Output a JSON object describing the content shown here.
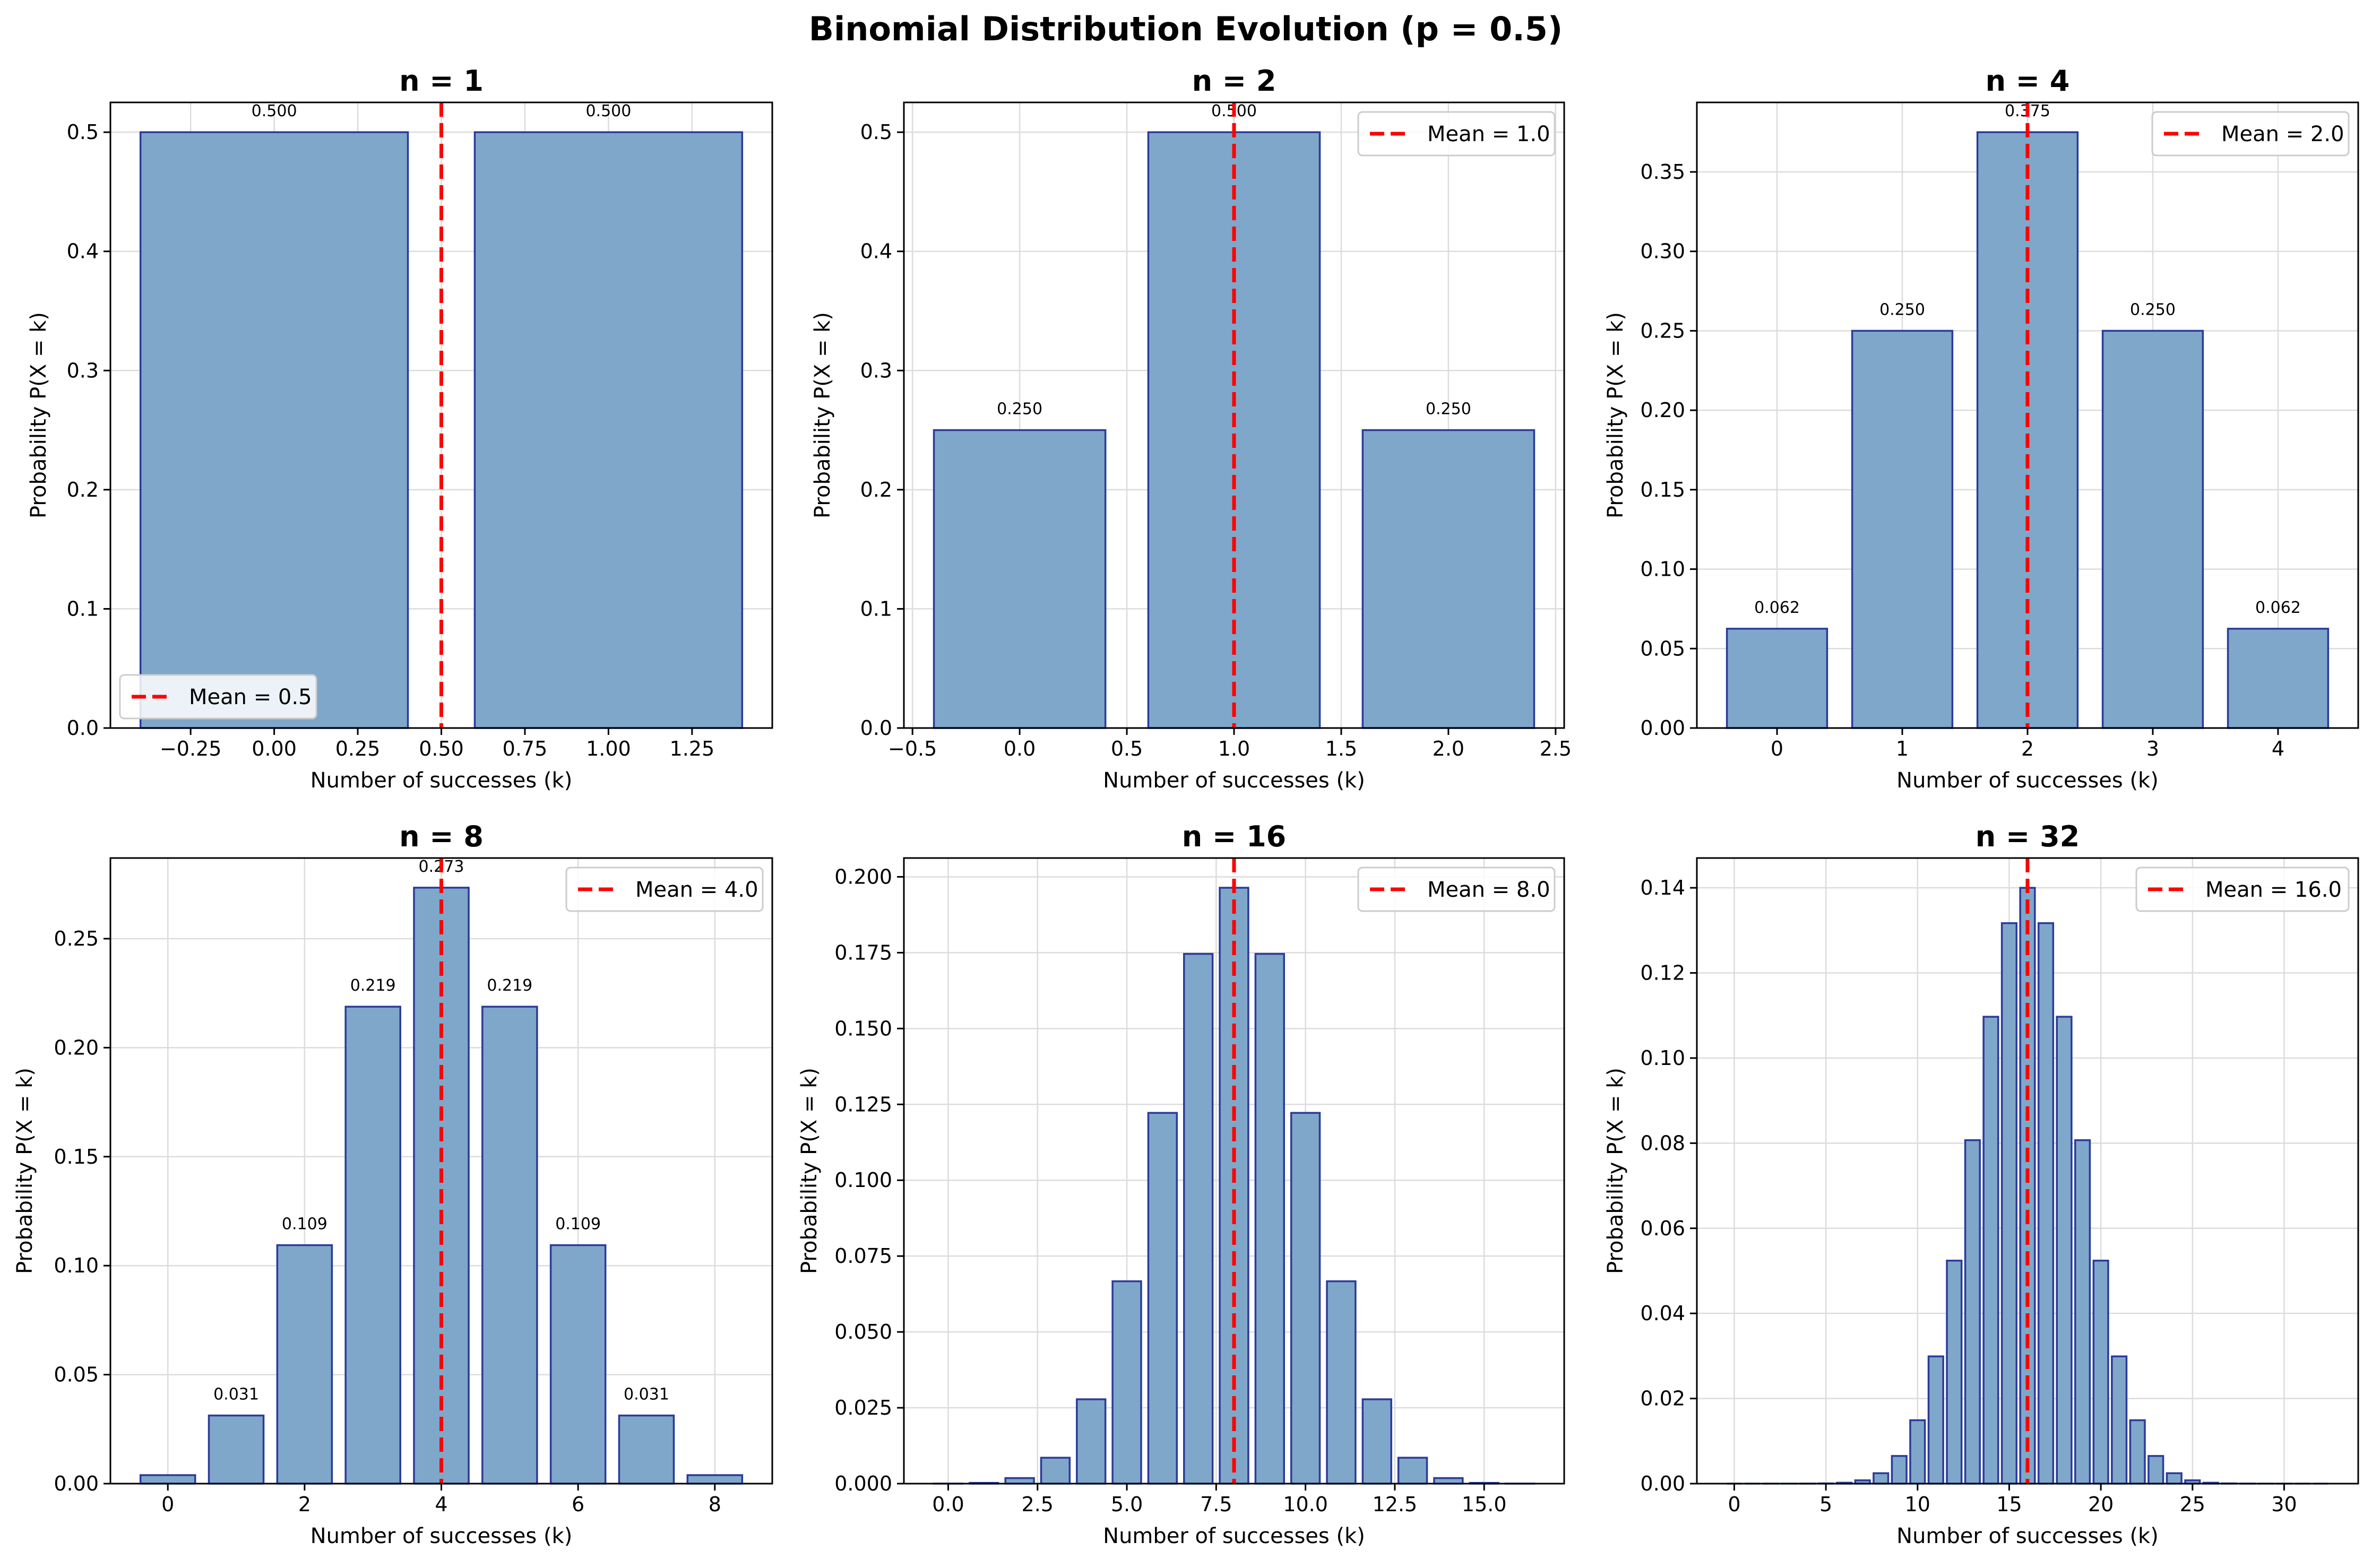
{
  "figure": {
    "title": "Binomial Distribution Evolution (p = 0.5)"
  },
  "colors": {
    "bar_fill": "#7fa7ca",
    "bar_edge": "#2b3b9a",
    "mean_line": "#ff0000",
    "grid": "#dcdcdc"
  },
  "chart_data": [
    {
      "type": "bar",
      "title": "n = 1",
      "xlabel": "Number of successes (k)",
      "ylabel": "Probability P(X = k)",
      "x": [
        0,
        1
      ],
      "values": [
        0.5,
        0.5
      ],
      "bar_labels": [
        "0.500",
        "0.500"
      ],
      "xlim": [
        -0.49,
        1.49
      ],
      "ylim": [
        0,
        0.525
      ],
      "xticks": [
        -0.25,
        0,
        0.25,
        0.5,
        0.75,
        1.0,
        1.25
      ],
      "xtick_labels": [
        "−0.25",
        "0.00",
        "0.25",
        "0.50",
        "0.75",
        "1.00",
        "1.25"
      ],
      "yticks": [
        0,
        0.1,
        0.2,
        0.3,
        0.4,
        0.5
      ],
      "ytick_labels": [
        "0.0",
        "0.1",
        "0.2",
        "0.3",
        "0.4",
        "0.5"
      ],
      "mean": 0.5,
      "legend": "Mean = 0.5",
      "legend_loc": "lower-left",
      "grid": true
    },
    {
      "type": "bar",
      "title": "n = 2",
      "xlabel": "Number of successes (k)",
      "ylabel": "Probability P(X = k)",
      "x": [
        0,
        1,
        2
      ],
      "values": [
        0.25,
        0.5,
        0.25
      ],
      "bar_labels": [
        "0.250",
        "0.500",
        "0.250"
      ],
      "xlim": [
        -0.54,
        2.54
      ],
      "ylim": [
        0,
        0.525
      ],
      "xticks": [
        -0.5,
        0,
        0.5,
        1.0,
        1.5,
        2.0,
        2.5
      ],
      "xtick_labels": [
        "−0.5",
        "0.0",
        "0.5",
        "1.0",
        "1.5",
        "2.0",
        "2.5"
      ],
      "yticks": [
        0,
        0.1,
        0.2,
        0.3,
        0.4,
        0.5
      ],
      "ytick_labels": [
        "0.0",
        "0.1",
        "0.2",
        "0.3",
        "0.4",
        "0.5"
      ],
      "mean": 1.0,
      "legend": "Mean = 1.0",
      "legend_loc": "upper-right",
      "grid": true
    },
    {
      "type": "bar",
      "title": "n = 4",
      "xlabel": "Number of successes (k)",
      "ylabel": "Probability P(X = k)",
      "x": [
        0,
        1,
        2,
        3,
        4
      ],
      "values": [
        0.0625,
        0.25,
        0.375,
        0.25,
        0.0625
      ],
      "bar_labels": [
        "0.062",
        "0.250",
        "0.375",
        "0.250",
        "0.062"
      ],
      "xlim": [
        -0.64,
        4.64
      ],
      "ylim": [
        0,
        0.39375
      ],
      "xticks": [
        0,
        1,
        2,
        3,
        4
      ],
      "xtick_labels": [
        "0",
        "1",
        "2",
        "3",
        "4"
      ],
      "yticks": [
        0,
        0.05,
        0.1,
        0.15,
        0.2,
        0.25,
        0.3,
        0.35
      ],
      "ytick_labels": [
        "0.00",
        "0.05",
        "0.10",
        "0.15",
        "0.20",
        "0.25",
        "0.30",
        "0.35"
      ],
      "mean": 2.0,
      "legend": "Mean = 2.0",
      "legend_loc": "upper-right",
      "grid": true
    },
    {
      "type": "bar",
      "title": "n = 8",
      "xlabel": "Number of successes (k)",
      "ylabel": "Probability P(X = k)",
      "x": [
        0,
        1,
        2,
        3,
        4,
        5,
        6,
        7,
        8
      ],
      "values": [
        0.0039,
        0.03125,
        0.1094,
        0.2188,
        0.2734,
        0.2188,
        0.1094,
        0.03125,
        0.0039
      ],
      "bar_labels": [
        "",
        "0.031",
        "0.109",
        "0.219",
        "0.273",
        "0.219",
        "0.109",
        "0.031",
        ""
      ],
      "xlim": [
        -0.84,
        8.84
      ],
      "ylim": [
        0,
        0.287
      ],
      "xticks": [
        0,
        2,
        4,
        6,
        8
      ],
      "xtick_labels": [
        "0",
        "2",
        "4",
        "6",
        "8"
      ],
      "yticks": [
        0,
        0.05,
        0.1,
        0.15,
        0.2,
        0.25
      ],
      "ytick_labels": [
        "0.00",
        "0.05",
        "0.10",
        "0.15",
        "0.20",
        "0.25"
      ],
      "mean": 4.0,
      "legend": "Mean = 4.0",
      "legend_loc": "upper-right",
      "grid": true
    },
    {
      "type": "bar",
      "title": "n = 16",
      "xlabel": "Number of successes (k)",
      "ylabel": "Probability P(X = k)",
      "x": [
        0,
        1,
        2,
        3,
        4,
        5,
        6,
        7,
        8,
        9,
        10,
        11,
        12,
        13,
        14,
        15,
        16
      ],
      "values": [
        1.53e-05,
        0.000244,
        0.00183,
        0.00854,
        0.0278,
        0.0667,
        0.1222,
        0.1746,
        0.1964,
        0.1746,
        0.1222,
        0.0667,
        0.0278,
        0.00854,
        0.00183,
        0.000244,
        1.53e-05
      ],
      "bar_labels": [],
      "xlim": [
        -1.24,
        17.24
      ],
      "ylim": [
        0,
        0.2062
      ],
      "xticks": [
        0,
        2.5,
        5,
        7.5,
        10,
        12.5,
        15
      ],
      "xtick_labels": [
        "0.0",
        "2.5",
        "5.0",
        "7.5",
        "10.0",
        "12.5",
        "15.0"
      ],
      "yticks": [
        0,
        0.025,
        0.05,
        0.075,
        0.1,
        0.125,
        0.15,
        0.175,
        0.2
      ],
      "ytick_labels": [
        "0.000",
        "0.025",
        "0.050",
        "0.075",
        "0.100",
        "0.125",
        "0.150",
        "0.175",
        "0.200"
      ],
      "mean": 8.0,
      "legend": "Mean = 8.0",
      "legend_loc": "upper-right",
      "grid": true
    },
    {
      "type": "bar",
      "title": "n = 32",
      "xlabel": "Number of successes (k)",
      "ylabel": "Probability P(X = k)",
      "x": [
        0,
        1,
        2,
        3,
        4,
        5,
        6,
        7,
        8,
        9,
        10,
        11,
        12,
        13,
        14,
        15,
        16,
        17,
        18,
        19,
        20,
        21,
        22,
        23,
        24,
        25,
        26,
        27,
        28,
        29,
        30,
        31,
        32
      ],
      "values": [
        2e-10,
        7.5e-09,
        1.2e-07,
        1.1e-06,
        8.3e-06,
        4.7e-05,
        0.00021,
        0.00078,
        0.00245,
        0.0065,
        0.0149,
        0.0299,
        0.0524,
        0.0807,
        0.1097,
        0.1317,
        0.14,
        0.1317,
        0.1097,
        0.0807,
        0.0524,
        0.0299,
        0.0149,
        0.0065,
        0.00245,
        0.00078,
        0.00021,
        4.7e-05,
        8.3e-06,
        1.1e-06,
        1.2e-07,
        7.5e-09,
        2e-10
      ],
      "bar_labels": [],
      "xlim": [
        -2.04,
        34.04
      ],
      "ylim": [
        0,
        0.147
      ],
      "xticks": [
        0,
        5,
        10,
        15,
        20,
        25,
        30
      ],
      "xtick_labels": [
        "0",
        "5",
        "10",
        "15",
        "20",
        "25",
        "30"
      ],
      "yticks": [
        0,
        0.02,
        0.04,
        0.06,
        0.08,
        0.1,
        0.12,
        0.14
      ],
      "ytick_labels": [
        "0.00",
        "0.02",
        "0.04",
        "0.06",
        "0.08",
        "0.10",
        "0.12",
        "0.14"
      ],
      "mean": 16.0,
      "legend": "Mean = 16.0",
      "legend_loc": "upper-right",
      "grid": true
    }
  ]
}
